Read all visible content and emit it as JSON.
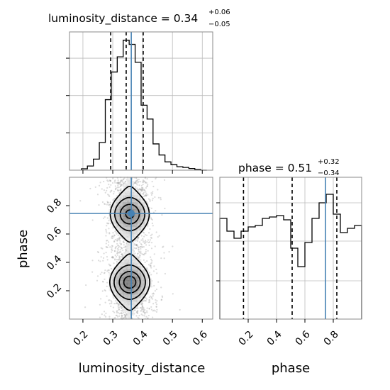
{
  "chart_data": {
    "type": "corner",
    "parameters": [
      "luminosity_distance",
      "phase"
    ],
    "truths": {
      "luminosity_distance": 0.362,
      "phase": 0.745
    },
    "panels": [
      {
        "id": "hist-luminosity-distance",
        "type": "histogram",
        "parameter": "luminosity_distance",
        "title": {
          "base": "luminosity_distance = 0.34",
          "plus": "+0.06",
          "minus": "−0.05"
        },
        "xlim": [
          0.155,
          0.635
        ],
        "bin_edges": [
          0.195,
          0.215,
          0.235,
          0.255,
          0.275,
          0.295,
          0.315,
          0.335,
          0.355,
          0.375,
          0.395,
          0.415,
          0.435,
          0.455,
          0.475,
          0.495,
          0.515,
          0.535,
          0.555,
          0.575,
          0.595,
          0.615
        ],
        "counts": [
          0.01,
          0.03,
          0.08,
          0.2,
          0.51,
          0.71,
          0.82,
          0.94,
          0.91,
          0.78,
          0.47,
          0.37,
          0.19,
          0.11,
          0.06,
          0.04,
          0.025,
          0.02,
          0.012,
          0.005,
          0.0
        ],
        "ylim": [
          0,
          1.0
        ],
        "quantiles": [
          0.293,
          0.345,
          0.402
        ],
        "truth": 0.362
      },
      {
        "id": "hist-phase",
        "type": "histogram",
        "parameter": "phase",
        "title": {
          "base": "phase = 0.51",
          "plus": "+0.32",
          "minus": "−0.34"
        },
        "xlim": [
          0.0,
          1.0
        ],
        "bin_edges": [
          0.0,
          0.05,
          0.1,
          0.15,
          0.2,
          0.25,
          0.3,
          0.35,
          0.4,
          0.45,
          0.5,
          0.55,
          0.6,
          0.65,
          0.7,
          0.75,
          0.8,
          0.85,
          0.9,
          0.95,
          1.0
        ],
        "counts": [
          0.71,
          0.62,
          0.57,
          0.62,
          0.65,
          0.66,
          0.71,
          0.72,
          0.73,
          0.7,
          0.5,
          0.37,
          0.54,
          0.71,
          0.82,
          0.88,
          0.74,
          0.61,
          0.64,
          0.66
        ],
        "ylim": [
          0,
          1.0
        ],
        "quantiles": [
          0.167,
          0.51,
          0.825
        ],
        "truth": 0.745
      },
      {
        "id": "scatter-2d",
        "type": "2d-density",
        "x_parameter": "luminosity_distance",
        "y_parameter": "phase",
        "xlim": [
          0.155,
          0.635
        ],
        "ylim": [
          0.0,
          1.0
        ],
        "density": {
          "x_center": 0.357,
          "x_sigma": 0.042,
          "y_modes": [
            {
              "center": 0.26,
              "strength": 1.0,
              "width": 0.075
            },
            {
              "center": 0.74,
              "strength": 0.92,
              "width": 0.075
            }
          ]
        },
        "truth": {
          "x": 0.362,
          "y": 0.745
        }
      }
    ],
    "x_ticks": {
      "luminosity_distance": [
        0.2,
        0.3,
        0.4,
        0.5,
        0.6
      ],
      "phase": [
        0.2,
        0.4,
        0.6,
        0.8
      ]
    },
    "y_ticks": {
      "phase": [
        0.2,
        0.4,
        0.6,
        0.8
      ]
    },
    "tick_labels": {
      "luminosity_distance": [
        "0.2",
        "0.3",
        "0.4",
        "0.5",
        "0.6"
      ],
      "phase": [
        "0.2",
        "0.4",
        "0.6",
        "0.8"
      ]
    },
    "axis_labels": {
      "x_left": "luminosity_distance",
      "x_right": "phase",
      "y": "phase"
    },
    "grid": true,
    "colors": {
      "truth": "#4682b4",
      "hist": "#000000",
      "grid": "#bbbbbb",
      "spine": "#888888",
      "points": "#9a9a9a"
    }
  }
}
